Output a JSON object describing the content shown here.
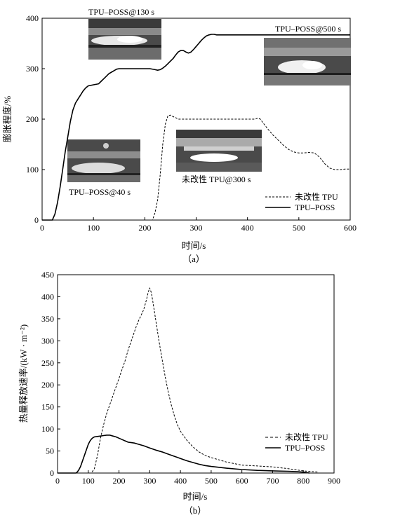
{
  "chart_data": [
    {
      "type": "line",
      "panel_label": "（a）",
      "xlabel": "时间/s",
      "ylabel": "膨胀程度/%",
      "xlim": [
        0,
        600
      ],
      "ylim": [
        0,
        400
      ],
      "xticks": [
        0,
        100,
        200,
        300,
        400,
        500,
        600
      ],
      "yticks": [
        0,
        100,
        200,
        300,
        400
      ],
      "grid": false,
      "legend_position": "bottom-right",
      "series": [
        {
          "name": "未改性 TPU",
          "style": "dashed",
          "x": [
            0,
            215,
            220,
            225,
            230,
            235,
            240,
            245,
            250,
            255,
            260,
            265,
            280,
            300,
            320,
            340,
            360,
            380,
            400,
            415,
            420,
            425,
            430,
            440,
            450,
            460,
            470,
            480,
            490,
            500,
            510,
            520,
            530,
            540,
            550,
            560,
            570,
            580,
            590,
            600
          ],
          "y": [
            0,
            0,
            15,
            40,
            90,
            150,
            190,
            207,
            208,
            205,
            203,
            200,
            200,
            200,
            200,
            200,
            200,
            200,
            200,
            200,
            202,
            200,
            193,
            180,
            168,
            158,
            148,
            140,
            135,
            133,
            133,
            134,
            133,
            125,
            112,
            103,
            100,
            100,
            101,
            101
          ]
        },
        {
          "name": "TPU–POSS",
          "style": "solid",
          "x": [
            0,
            20,
            25,
            30,
            35,
            40,
            45,
            50,
            55,
            60,
            65,
            70,
            75,
            80,
            85,
            90,
            100,
            110,
            115,
            120,
            125,
            130,
            135,
            140,
            145,
            150,
            160,
            180,
            200,
            210,
            220,
            225,
            230,
            235,
            240,
            245,
            250,
            255,
            260,
            265,
            270,
            275,
            280,
            285,
            290,
            295,
            300,
            305,
            310,
            315,
            320,
            325,
            330,
            335,
            340,
            345,
            350,
            355,
            360,
            380,
            400,
            450,
            500,
            600
          ],
          "y": [
            0,
            0,
            12,
            35,
            65,
            100,
            135,
            165,
            195,
            218,
            232,
            240,
            248,
            256,
            262,
            266,
            268,
            270,
            275,
            280,
            285,
            290,
            293,
            296,
            299,
            300,
            300,
            300,
            300,
            300,
            298,
            297,
            298,
            301,
            305,
            310,
            315,
            320,
            327,
            333,
            336,
            336,
            333,
            331,
            333,
            338,
            344,
            350,
            356,
            361,
            365,
            367,
            368,
            368,
            367,
            367,
            367,
            367,
            367,
            367,
            367,
            367,
            367,
            367
          ]
        }
      ],
      "annotations": [
        {
          "text": "TPU–POSS@130 s"
        },
        {
          "text": "TPU–POSS@500 s"
        },
        {
          "text": "TPU–POSS@40 s"
        },
        {
          "text": "未改性 TPU@300 s"
        }
      ]
    },
    {
      "type": "line",
      "panel_label": "（b）",
      "xlabel": "时间/s",
      "ylabel": "热量释放速率/(kW · m⁻²)",
      "xlim": [
        0,
        900
      ],
      "ylim": [
        0,
        450
      ],
      "xticks": [
        0,
        100,
        200,
        300,
        400,
        500,
        600,
        700,
        800,
        900
      ],
      "yticks": [
        0,
        50,
        100,
        150,
        200,
        250,
        300,
        350,
        400,
        450
      ],
      "grid": false,
      "legend_position": "bottom-right",
      "series": [
        {
          "name": "未改性 TPU",
          "style": "dashed",
          "x": [
            0,
            110,
            120,
            130,
            140,
            150,
            160,
            170,
            180,
            190,
            200,
            210,
            220,
            230,
            240,
            250,
            260,
            270,
            280,
            290,
            295,
            300,
            305,
            310,
            320,
            330,
            340,
            350,
            360,
            370,
            380,
            390,
            400,
            420,
            440,
            460,
            480,
            500,
            550,
            600,
            650,
            700,
            750,
            800,
            850
          ],
          "y": [
            0,
            0,
            10,
            40,
            80,
            110,
            135,
            155,
            175,
            195,
            215,
            235,
            255,
            280,
            300,
            320,
            340,
            355,
            370,
            395,
            410,
            420,
            410,
            390,
            345,
            300,
            260,
            220,
            185,
            155,
            130,
            110,
            95,
            75,
            60,
            48,
            40,
            35,
            25,
            18,
            16,
            14,
            10,
            5,
            2
          ]
        },
        {
          "name": "TPU–POSS",
          "style": "solid",
          "x": [
            0,
            60,
            65,
            70,
            75,
            80,
            85,
            90,
            95,
            100,
            105,
            110,
            115,
            120,
            130,
            140,
            150,
            160,
            170,
            180,
            190,
            200,
            210,
            220,
            230,
            240,
            250,
            260,
            280,
            300,
            320,
            340,
            360,
            380,
            400,
            420,
            440,
            460,
            480,
            500,
            550,
            600,
            650,
            700,
            750,
            780,
            800,
            810,
            820
          ],
          "y": [
            0,
            0,
            3,
            8,
            15,
            25,
            35,
            45,
            55,
            65,
            72,
            77,
            80,
            82,
            83,
            84,
            85,
            86,
            86,
            84,
            82,
            79,
            76,
            73,
            70,
            69,
            68,
            66,
            62,
            57,
            52,
            48,
            43,
            38,
            33,
            28,
            24,
            20,
            17,
            15,
            11,
            8,
            6,
            5,
            4,
            3,
            2,
            1,
            0
          ]
        }
      ]
    }
  ]
}
